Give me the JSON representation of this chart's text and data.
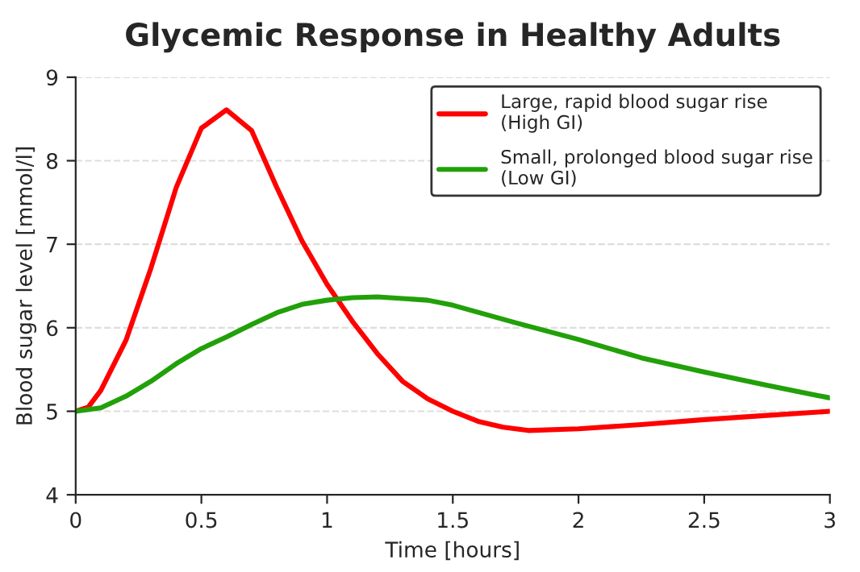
{
  "chart_data": {
    "type": "line",
    "title": "Glycemic Response in Healthy Adults",
    "xlabel": "Time [hours]",
    "ylabel": "Blood sugar level [mmol/l]",
    "xlim": [
      0,
      3
    ],
    "xticks": [
      0,
      0.5,
      1,
      1.5,
      2,
      2.5,
      3
    ],
    "ylim": [
      4,
      9
    ],
    "yticks": [
      4,
      5,
      6,
      7,
      8,
      9
    ],
    "grid": "y",
    "legend": "top right",
    "marker": "none",
    "line_style": "solid",
    "series": [
      {
        "name": "Large, rapid blood sugar rise\n(High GI)",
        "color": "#ff0000",
        "x": [
          0,
          0.05,
          0.1,
          0.2,
          0.3,
          0.4,
          0.5,
          0.6,
          0.7,
          0.8,
          0.9,
          1.0,
          1.1,
          1.2,
          1.3,
          1.4,
          1.5,
          1.6,
          1.7,
          1.8,
          2.0,
          2.25,
          2.5,
          2.75,
          3.0
        ],
        "values": [
          5.0,
          5.05,
          5.25,
          5.85,
          6.72,
          7.68,
          8.39,
          8.61,
          8.36,
          7.68,
          7.04,
          6.52,
          6.08,
          5.69,
          5.36,
          5.15,
          5.0,
          4.88,
          4.81,
          4.77,
          4.79,
          4.84,
          4.9,
          4.95,
          5.0
        ]
      },
      {
        "name": "Small, prolonged blood sugar rise\n(Low GI)",
        "color": "#22a00a",
        "x": [
          0,
          0.1,
          0.2,
          0.3,
          0.4,
          0.5,
          0.6,
          0.7,
          0.8,
          0.9,
          1.0,
          1.1,
          1.2,
          1.4,
          1.5,
          1.75,
          2.0,
          2.25,
          2.5,
          2.75,
          3.0
        ],
        "values": [
          5.0,
          5.04,
          5.18,
          5.36,
          5.57,
          5.75,
          5.89,
          6.04,
          6.18,
          6.28,
          6.33,
          6.36,
          6.37,
          6.33,
          6.27,
          6.06,
          5.86,
          5.64,
          5.47,
          5.31,
          5.16
        ]
      }
    ]
  }
}
